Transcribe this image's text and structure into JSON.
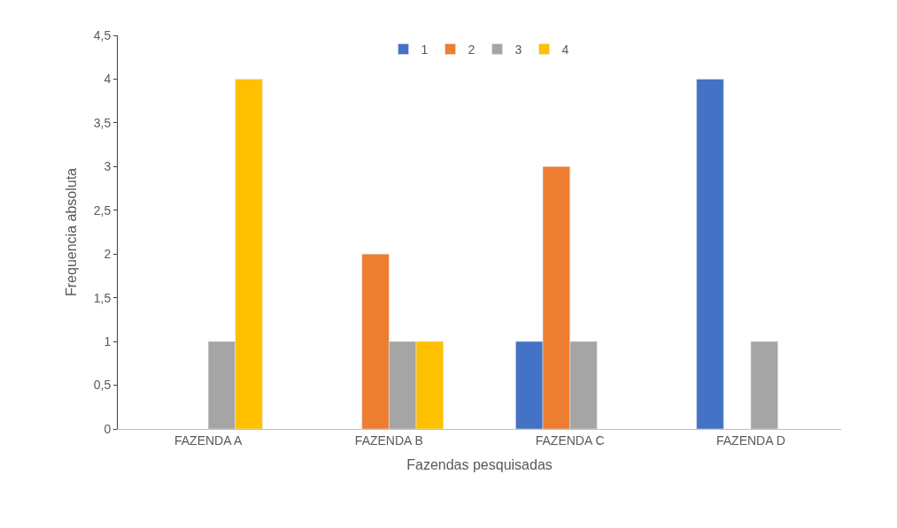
{
  "chart_data": {
    "type": "bar",
    "xlabel": "Fazendas pesquisadas",
    "ylabel": "Frequencia absoluta",
    "categories": [
      "FAZENDA A",
      "FAZENDA B",
      "FAZENDA C",
      "FAZENDA D"
    ],
    "series": [
      {
        "name": "1",
        "color": "#4472c4",
        "values": [
          null,
          null,
          1,
          4
        ]
      },
      {
        "name": "2",
        "color": "#ed7d31",
        "values": [
          null,
          2,
          3,
          null
        ]
      },
      {
        "name": "3",
        "color": "#a5a5a5",
        "values": [
          1,
          1,
          1,
          1
        ]
      },
      {
        "name": "4",
        "color": "#ffc000",
        "values": [
          4,
          1,
          null,
          null
        ]
      }
    ],
    "ylim": [
      0,
      4.5
    ],
    "yticks": [
      0,
      {
        "value": 0.5,
        "label": "0,5"
      },
      1,
      {
        "value": 1.5,
        "label": "1,5"
      },
      2,
      {
        "value": 2.5,
        "label": "2,5"
      },
      3,
      {
        "value": 3.5,
        "label": "3,5"
      },
      4,
      {
        "value": 4.5,
        "label": "4,5"
      }
    ],
    "grid": false,
    "legend": "top"
  }
}
